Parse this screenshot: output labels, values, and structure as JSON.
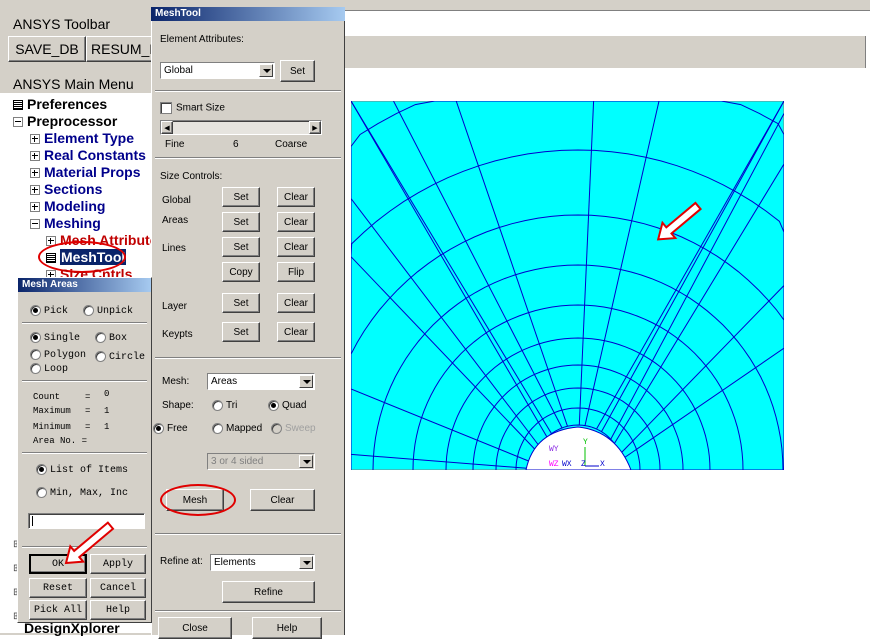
{
  "toolbar": {
    "title": "ANSYS Toolbar",
    "buttons": [
      "SAVE_DB",
      "RESUM_D"
    ]
  },
  "main_menu": {
    "title": "ANSYS Main Menu",
    "items": [
      {
        "label": "Preferences",
        "color": "#000000"
      },
      {
        "label": "Preprocessor",
        "color": "#000000"
      },
      {
        "label": "Element Type",
        "color": "#00008b"
      },
      {
        "label": "Real Constants",
        "color": "#00008b"
      },
      {
        "label": "Material Props",
        "color": "#00008b"
      },
      {
        "label": "Sections",
        "color": "#00008b"
      },
      {
        "label": "Modeling",
        "color": "#00008b"
      },
      {
        "label": "Meshing",
        "color": "#00008b"
      },
      {
        "label": "Mesh Attribute",
        "color": "#c00000"
      },
      {
        "label": "MeshTool",
        "color": "#ffffff"
      },
      {
        "label": "Size Cntrls",
        "color": "#c00000"
      },
      {
        "label": "DesignXplorer",
        "color": "#000000"
      }
    ]
  },
  "meshtool": {
    "title": "MeshTool",
    "element_attributes_label": "Element Attributes:",
    "element_attributes_value": "Global",
    "set_label": "Set",
    "smart_size_label": "Smart Size",
    "slider_fine": "Fine",
    "slider_value": "6",
    "slider_coarse": "Coarse",
    "size_controls_label": "Size Controls:",
    "size_rows": [
      {
        "label": "Global",
        "set": "Set",
        "clear": "Clear"
      },
      {
        "label": "Areas",
        "set": "Set",
        "clear": "Clear"
      },
      {
        "label": "Lines",
        "set": "Set",
        "clear": "Clear"
      }
    ],
    "copy_label": "Copy",
    "flip_label": "Flip",
    "layer": {
      "label": "Layer",
      "set": "Set",
      "clear": "Clear"
    },
    "keypts": {
      "label": "Keypts",
      "set": "Set",
      "clear": "Clear"
    },
    "mesh_label": "Mesh:",
    "mesh_value": "Areas",
    "shape_label": "Shape:",
    "shape_tri": "Tri",
    "shape_quad": "Quad",
    "free_label": "Free",
    "mapped_label": "Mapped",
    "sweep_label": "Sweep",
    "sided_value": "3 or 4 sided",
    "mesh_button": "Mesh",
    "clear_button": "Clear",
    "refine_at_label": "Refine at:",
    "refine_at_value": "Elements",
    "refine_button": "Refine",
    "close_button": "Close",
    "help_button": "Help"
  },
  "mesh_areas": {
    "title": "Mesh Areas",
    "pick": "Pick",
    "unpick": "Unpick",
    "single": "Single",
    "box": "Box",
    "polygon": "Polygon",
    "circle": "Circle",
    "loop": "Loop",
    "count_label": "Count",
    "count_value": "0",
    "maximum_label": "Maximum",
    "maximum_value": "1",
    "minimum_label": "Minimum",
    "minimum_value": "1",
    "area_no_label": "Area No. =",
    "list_of_items": "List of Items",
    "min_max_inc": "Min, Max, Inc",
    "ok": "OK",
    "apply": "Apply",
    "reset": "Reset",
    "cancel": "Cancel",
    "pick_all": "Pick All",
    "help": "Help"
  },
  "graphics": {
    "background": "#00ffff",
    "line_color": "#0000cc",
    "triad": {
      "wy": "WY",
      "y": "Y",
      "wz": "WZ",
      "wx": "WX",
      "z": "Z",
      "x": "X"
    }
  }
}
